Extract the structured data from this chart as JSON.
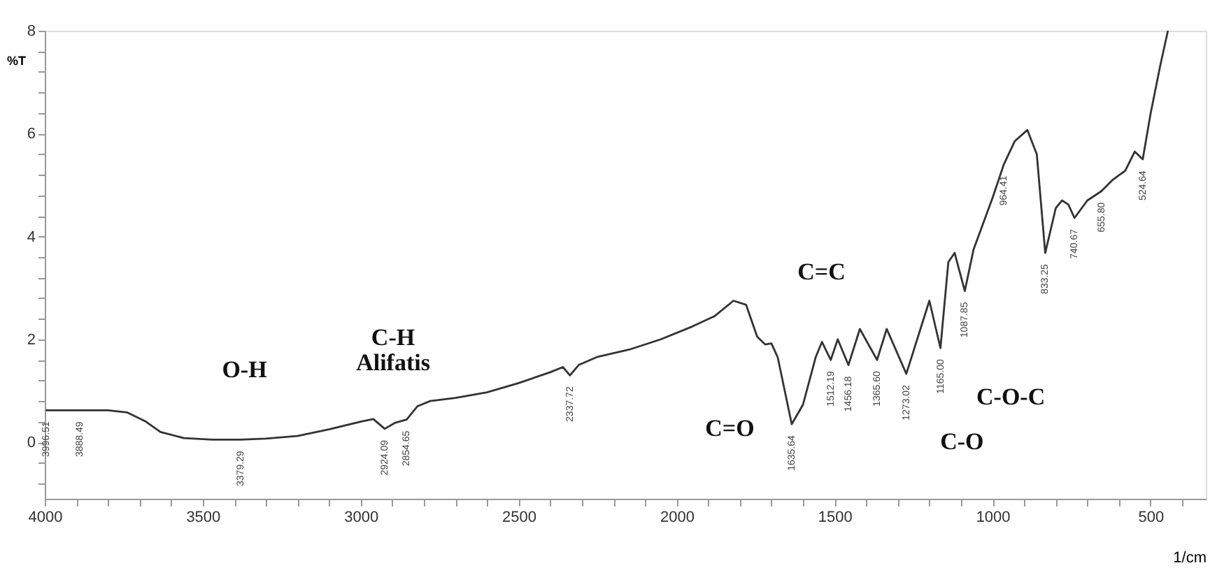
{
  "chart_data": {
    "type": "line",
    "ylabel": "%T",
    "xlabel": "1/cm",
    "xlim": [
      4000,
      325
    ],
    "xticks": [
      4000,
      {
        "value": 3900,
        "label": null
      },
      {
        "value": 3800,
        "label": null
      },
      {
        "value": 3700,
        "label": null
      },
      {
        "value": 3600,
        "label": null
      },
      3500,
      {
        "value": 3400,
        "label": null
      },
      {
        "value": 3300,
        "label": null
      },
      {
        "value": 3200,
        "label": null
      },
      {
        "value": 3100,
        "label": null
      },
      3000,
      {
        "value": 2900,
        "label": null
      },
      {
        "value": 2800,
        "label": null
      },
      {
        "value": 2700,
        "label": null
      },
      {
        "value": 2600,
        "label": null
      },
      2500,
      {
        "value": 2400,
        "label": null
      },
      {
        "value": 2300,
        "label": null
      },
      {
        "value": 2200,
        "label": null
      },
      {
        "value": 2100,
        "label": null
      },
      2000,
      {
        "value": 1900,
        "label": null
      },
      {
        "value": 1800,
        "label": null
      },
      {
        "value": 1700,
        "label": null
      },
      {
        "value": 1600,
        "label": null
      },
      1500,
      {
        "value": 1400,
        "label": null
      },
      {
        "value": 1300,
        "label": null
      },
      {
        "value": 1200,
        "label": null
      },
      {
        "value": 1100,
        "label": null
      },
      1000,
      {
        "value": 900,
        "label": null
      },
      {
        "value": 800,
        "label": null
      },
      {
        "value": 700,
        "label": null
      },
      {
        "value": 600,
        "label": null
      },
      500,
      {
        "value": 400,
        "label": null
      }
    ],
    "ylim": [
      -1.1,
      8
    ],
    "yticks": [
      {
        "value": -0.8,
        "label": null
      },
      {
        "value": -0.4,
        "label": null
      },
      0,
      {
        "value": 0.4,
        "label": null
      },
      {
        "value": 0.8,
        "label": null
      },
      {
        "value": 1.2,
        "label": null
      },
      {
        "value": 1.6,
        "label": null
      },
      2,
      {
        "value": 2.4,
        "label": null
      },
      {
        "value": 2.8,
        "label": null
      },
      {
        "value": 3.2,
        "label": null
      },
      {
        "value": 3.6,
        "label": null
      },
      4,
      {
        "value": 4.4,
        "label": null
      },
      {
        "value": 4.8,
        "label": null
      },
      {
        "value": 5.2,
        "label": null
      },
      {
        "value": 5.6,
        "label": null
      },
      6,
      {
        "value": 6.4,
        "label": null
      },
      {
        "value": 6.8,
        "label": null
      },
      {
        "value": 7.2,
        "label": null
      },
      {
        "value": 7.6,
        "label": null
      },
      8
    ],
    "grid": false,
    "marker": "none",
    "line_style": "solid",
    "series": [
      {
        "color": "#333333",
        "x": [
          3996.51,
          3888.49,
          3800,
          3740,
          3680,
          3634,
          3560,
          3470,
          3379.29,
          3300,
          3200,
          3100,
          3000,
          2960,
          2924.09,
          2890,
          2854.65,
          2820,
          2780,
          2700,
          2600,
          2500,
          2400,
          2360,
          2337.72,
          2310,
          2250,
          2150,
          2050,
          1950,
          1880,
          1820,
          1780,
          1745,
          1720,
          1700,
          1680,
          1635.64,
          1600,
          1560,
          1540,
          1512.19,
          1490,
          1456.18,
          1420,
          1365.6,
          1335,
          1273.02,
          1200,
          1165,
          1140,
          1120,
          1087.85,
          1060,
          1000,
          964.41,
          930,
          890,
          860,
          833.25,
          800,
          780,
          760,
          740.67,
          700,
          655.8,
          620,
          580,
          550,
          524.64,
          500,
          470,
          445
        ],
        "values": [
          0.62,
          0.62,
          0.62,
          0.58,
          0.4,
          0.2,
          0.08,
          0.05,
          0.05,
          0.07,
          0.12,
          0.25,
          0.4,
          0.45,
          0.26,
          0.38,
          0.44,
          0.7,
          0.8,
          0.86,
          0.97,
          1.15,
          1.36,
          1.46,
          1.3,
          1.5,
          1.66,
          1.8,
          2.0,
          2.25,
          2.45,
          2.75,
          2.67,
          2.05,
          1.9,
          1.92,
          1.65,
          0.35,
          0.73,
          1.65,
          1.95,
          1.6,
          2.0,
          1.5,
          2.2,
          1.6,
          2.2,
          1.33,
          2.75,
          1.83,
          3.5,
          3.68,
          2.94,
          3.75,
          4.75,
          5.4,
          5.85,
          6.07,
          5.6,
          3.68,
          4.55,
          4.7,
          4.62,
          4.36,
          4.7,
          4.88,
          5.1,
          5.28,
          5.65,
          5.5,
          6.38,
          7.3,
          8.0
        ]
      }
    ],
    "annotations": [
      {
        "text": "3996.51",
        "x": 3996.51,
        "y": 0.62
      },
      {
        "text": "3888.49",
        "x": 3888.49,
        "y": 0.62
      },
      {
        "text": "3379.29",
        "x": 3379.29,
        "y": 0.05
      },
      {
        "text": "2924.09",
        "x": 2924.09,
        "y": 0.26
      },
      {
        "text": "2854.65",
        "x": 2854.65,
        "y": 0.44
      },
      {
        "text": "2337.72",
        "x": 2337.72,
        "y": 1.3
      },
      {
        "text": "1635.64",
        "x": 1635.64,
        "y": 0.35
      },
      {
        "text": "1512.19",
        "x": 1512.19,
        "y": 1.6
      },
      {
        "text": "1456.18",
        "x": 1456.18,
        "y": 1.5
      },
      {
        "text": "1365.60",
        "x": 1365.6,
        "y": 1.6
      },
      {
        "text": "1273.02",
        "x": 1273.02,
        "y": 1.33
      },
      {
        "text": "1165.00",
        "x": 1165,
        "y": 1.83
      },
      {
        "text": "1087.85",
        "x": 1087.85,
        "y": 2.94
      },
      {
        "text": "964.41",
        "x": 964.41,
        "y": 5.4
      },
      {
        "text": "833.25",
        "x": 833.25,
        "y": 3.68
      },
      {
        "text": "740.67",
        "x": 740.67,
        "y": 4.36
      },
      {
        "text": "655.80",
        "x": 655.8,
        "y": 4.88
      },
      {
        "text": "524.64",
        "x": 524.64,
        "y": 5.5
      },
      "O-H",
      "C-H\nAlifatis",
      "C=C",
      "C=O",
      "C-O-C",
      "C-O"
    ]
  }
}
